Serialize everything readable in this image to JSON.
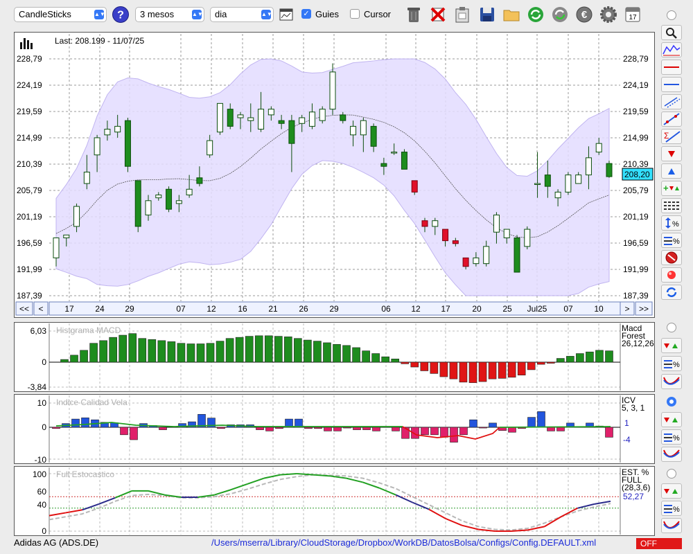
{
  "toolbar": {
    "chart_type": "CandleSticks",
    "period": "3 mesos",
    "interval": "dia",
    "guides_label": "Guies",
    "guides_checked": true,
    "cursor_label": "Cursor",
    "cursor_checked": false
  },
  "main_chart": {
    "last_label": "Last: 208.199 - 11/07/25",
    "current_price_tag": "208,20",
    "y_labels": [
      "228,79",
      "224,19",
      "219,59",
      "214,99",
      "210,39",
      "205,79",
      "201,19",
      "196,59",
      "191,99",
      "187,39"
    ],
    "x_labels": [
      "17",
      "24",
      "29",
      "07",
      "12",
      "16",
      "21",
      "26",
      "29",
      "06",
      "12",
      "17",
      "20",
      "25",
      "Jul25",
      "07",
      "10"
    ],
    "nav": {
      "first": "<<",
      "prev": "<",
      "next": ">",
      "last": ">>"
    }
  },
  "macd": {
    "title": "Histgrama MACD",
    "y_labels": [
      "6,03",
      "0",
      "-3,84"
    ],
    "legend": [
      "Macd",
      "Forest",
      "26,12,26"
    ]
  },
  "icv": {
    "title": "Indice Calidad Vela",
    "y_labels": [
      "10",
      "0",
      "-10"
    ],
    "legend": [
      "ICV",
      "5, 3, 1"
    ],
    "value_pos": "1",
    "value_neg": "-4"
  },
  "stoch": {
    "title": "Full Estocastico",
    "y_labels": [
      "100",
      "60",
      "40",
      "0"
    ],
    "legend": [
      "EST. %",
      "FULL",
      "(28,3,6)"
    ],
    "value": "52,27"
  },
  "statusbar": {
    "instrument": "Adidas AG (ADS.DE)",
    "config_path": "/Users/mserra/Library/CloudStorage/Dropbox/WorkDB/DatosBolsa/Configs/Config.DEFAULT.xml",
    "off_label": "OFF"
  },
  "chart_data": [
    {
      "type": "candlestick",
      "ylim": [
        187.39,
        228.79
      ],
      "last_value": 208.199,
      "candles": [
        {
          "o": 194.0,
          "h": 197.5,
          "l": 192.5,
          "c": 197.5
        },
        {
          "o": 197.5,
          "h": 198.0,
          "l": 196.0,
          "c": 198.0
        },
        {
          "o": 199.5,
          "h": 203.5,
          "l": 198.5,
          "c": 203.0
        },
        {
          "o": 207.0,
          "h": 212.0,
          "l": 206.0,
          "c": 209.0
        },
        {
          "o": 212.0,
          "h": 215.5,
          "l": 209.0,
          "c": 215.0
        },
        {
          "o": 215.5,
          "h": 218.0,
          "l": 214.5,
          "c": 216.5
        },
        {
          "o": 216.0,
          "h": 219.0,
          "l": 215.0,
          "c": 217.0
        },
        {
          "o": 218.0,
          "h": 218.5,
          "l": 209.0,
          "c": 210.0
        },
        {
          "o": 207.5,
          "h": 207.5,
          "l": 198.5,
          "c": 199.5
        },
        {
          "o": 201.5,
          "h": 205.0,
          "l": 200.5,
          "c": 204.0
        },
        {
          "o": 204.5,
          "h": 205.5,
          "l": 204.0,
          "c": 205.0
        },
        {
          "o": 206.0,
          "h": 206.5,
          "l": 202.0,
          "c": 202.5
        },
        {
          "o": 203.5,
          "h": 205.0,
          "l": 202.0,
          "c": 204.0
        },
        {
          "o": 205.0,
          "h": 208.5,
          "l": 204.5,
          "c": 206.0
        },
        {
          "o": 208.0,
          "h": 210.0,
          "l": 206.5,
          "c": 207.0
        },
        {
          "o": 212.0,
          "h": 215.5,
          "l": 211.5,
          "c": 214.5
        },
        {
          "o": 216.0,
          "h": 221.0,
          "l": 215.5,
          "c": 221.0
        },
        {
          "o": 220.0,
          "h": 221.0,
          "l": 216.5,
          "c": 217.0
        },
        {
          "o": 218.5,
          "h": 219.5,
          "l": 216.5,
          "c": 219.0
        },
        {
          "o": 218.0,
          "h": 221.0,
          "l": 216.0,
          "c": 218.5
        },
        {
          "o": 216.5,
          "h": 223.0,
          "l": 216.0,
          "c": 220.0
        },
        {
          "o": 219.0,
          "h": 220.5,
          "l": 218.0,
          "c": 220.0
        },
        {
          "o": 218.0,
          "h": 219.0,
          "l": 216.5,
          "c": 217.5
        },
        {
          "o": 218.0,
          "h": 219.0,
          "l": 209.0,
          "c": 214.0
        },
        {
          "o": 217.5,
          "h": 219.0,
          "l": 216.0,
          "c": 218.5
        },
        {
          "o": 217.0,
          "h": 221.0,
          "l": 216.5,
          "c": 219.5
        },
        {
          "o": 218.0,
          "h": 220.5,
          "l": 217.5,
          "c": 220.0
        },
        {
          "o": 220.0,
          "h": 228.0,
          "l": 219.0,
          "c": 226.5
        },
        {
          "o": 219.0,
          "h": 219.5,
          "l": 217.5,
          "c": 218.0
        },
        {
          "o": 215.5,
          "h": 218.0,
          "l": 213.5,
          "c": 217.0
        },
        {
          "o": 215.5,
          "h": 218.5,
          "l": 212.5,
          "c": 218.0
        },
        {
          "o": 217.0,
          "h": 217.5,
          "l": 212.5,
          "c": 213.5
        },
        {
          "o": 210.5,
          "h": 211.5,
          "l": 208.5,
          "c": 210.0
        },
        {
          "o": 212.5,
          "h": 214.0,
          "l": 212.0,
          "c": 212.5
        },
        {
          "o": 212.5,
          "h": 213.0,
          "l": 209.5,
          "c": 209.5
        },
        {
          "o": 207.5,
          "h": 207.5,
          "l": 205.0,
          "c": 205.5
        },
        {
          "o": 200.5,
          "h": 201.0,
          "l": 198.5,
          "c": 199.5
        },
        {
          "o": 199.5,
          "h": 201.0,
          "l": 198.0,
          "c": 200.5
        },
        {
          "o": 199.0,
          "h": 199.0,
          "l": 196.0,
          "c": 197.0
        },
        {
          "o": 197.0,
          "h": 197.5,
          "l": 196.0,
          "c": 196.5
        },
        {
          "o": 194.0,
          "h": 194.0,
          "l": 192.0,
          "c": 192.5
        },
        {
          "o": 193.0,
          "h": 195.0,
          "l": 192.5,
          "c": 194.0
        },
        {
          "o": 193.0,
          "h": 197.0,
          "l": 192.5,
          "c": 196.0
        },
        {
          "o": 198.5,
          "h": 202.0,
          "l": 196.5,
          "c": 201.5
        },
        {
          "o": 197.5,
          "h": 199.0,
          "l": 196.5,
          "c": 199.0
        },
        {
          "o": 197.5,
          "h": 198.0,
          "l": 191.5,
          "c": 191.5
        },
        {
          "o": 196.0,
          "h": 199.5,
          "l": 195.5,
          "c": 199.0
        },
        {
          "o": 207.0,
          "h": 212.5,
          "l": 204.5,
          "c": 207.0
        },
        {
          "o": 208.5,
          "h": 211.0,
          "l": 204.5,
          "c": 206.5
        },
        {
          "o": 204.5,
          "h": 206.0,
          "l": 203.0,
          "c": 205.5
        },
        {
          "o": 205.5,
          "h": 209.0,
          "l": 205.0,
          "c": 208.5
        },
        {
          "o": 207.0,
          "h": 209.0,
          "l": 207.0,
          "c": 208.5
        },
        {
          "o": 208.5,
          "h": 213.5,
          "l": 206.0,
          "c": 211.5
        },
        {
          "o": 212.5,
          "h": 215.0,
          "l": 212.0,
          "c": 214.0
        },
        {
          "o": 210.5,
          "h": 211.0,
          "l": 208.0,
          "c": 208.2
        }
      ]
    },
    {
      "type": "bar",
      "name": "Histgrama MACD",
      "ylim": [
        -3.84,
        6.03
      ],
      "values": [
        0.5,
        1.3,
        2.2,
        3.5,
        4.0,
        4.6,
        5.0,
        5.3,
        4.4,
        4.2,
        4.0,
        3.8,
        3.5,
        3.4,
        3.4,
        3.5,
        3.9,
        4.4,
        4.6,
        4.8,
        4.9,
        4.9,
        4.8,
        4.7,
        4.4,
        4.1,
        3.9,
        3.6,
        3.3,
        3.1,
        2.7,
        2.1,
        1.6,
        1.0,
        0.6,
        -0.3,
        -0.9,
        -1.6,
        -2.1,
        -2.7,
        -3.1,
        -3.7,
        -3.8,
        -3.6,
        -3.1,
        -3.0,
        -2.8,
        -2.4,
        -1.4,
        -0.4,
        -0.2,
        0.7,
        1.1,
        1.6,
        1.9,
        2.2,
        2.1
      ]
    },
    {
      "type": "bar",
      "name": "ICV",
      "ylim": [
        -10,
        10
      ],
      "values": [
        -0.5,
        1.5,
        3.3,
        3.8,
        3.0,
        2.0,
        1.8,
        -3.0,
        -5.0,
        1.5,
        0.7,
        -1.0,
        0,
        1.5,
        2.2,
        5.2,
        3.7,
        -0.5,
        1.0,
        1.0,
        1.0,
        -1.0,
        -1.5,
        -0.5,
        3.3,
        3.3,
        -0.5,
        -0.5,
        -1.5,
        -1.5,
        -0.3,
        -1.0,
        -1.0,
        -1.5,
        0,
        -1.5,
        -4.5,
        -4.5,
        -3.0,
        -3.0,
        -4.0,
        -6.0,
        -3.0,
        3.0,
        -0.3,
        1.7,
        -1.3,
        -2.0,
        -0.5,
        4.0,
        6.3,
        -1.5,
        -1.5,
        1.7,
        0,
        1.7,
        0.5,
        -4.0
      ],
      "signal_positive": 1,
      "signal_negative": -4
    },
    {
      "type": "line",
      "name": "Full Estocastico",
      "ylim": [
        0,
        100
      ],
      "levels": [
        40,
        60
      ],
      "series": [
        {
          "values": [
            27,
            32,
            37,
            47,
            58,
            70,
            70,
            63,
            59,
            59,
            63,
            72,
            82,
            92,
            98,
            100,
            98,
            96,
            92,
            85,
            75,
            63,
            50,
            38,
            22,
            10,
            3,
            0,
            0,
            2,
            8,
            25,
            40,
            47,
            52
          ]
        },
        {
          "values": [
            20,
            25,
            30,
            40,
            52,
            62,
            64,
            62,
            58,
            58,
            60,
            65,
            73,
            82,
            90,
            95,
            98,
            97,
            96,
            92,
            84,
            74,
            60,
            46,
            32,
            18,
            8,
            3,
            2,
            5,
            14,
            25,
            35,
            42,
            48
          ]
        }
      ]
    }
  ]
}
